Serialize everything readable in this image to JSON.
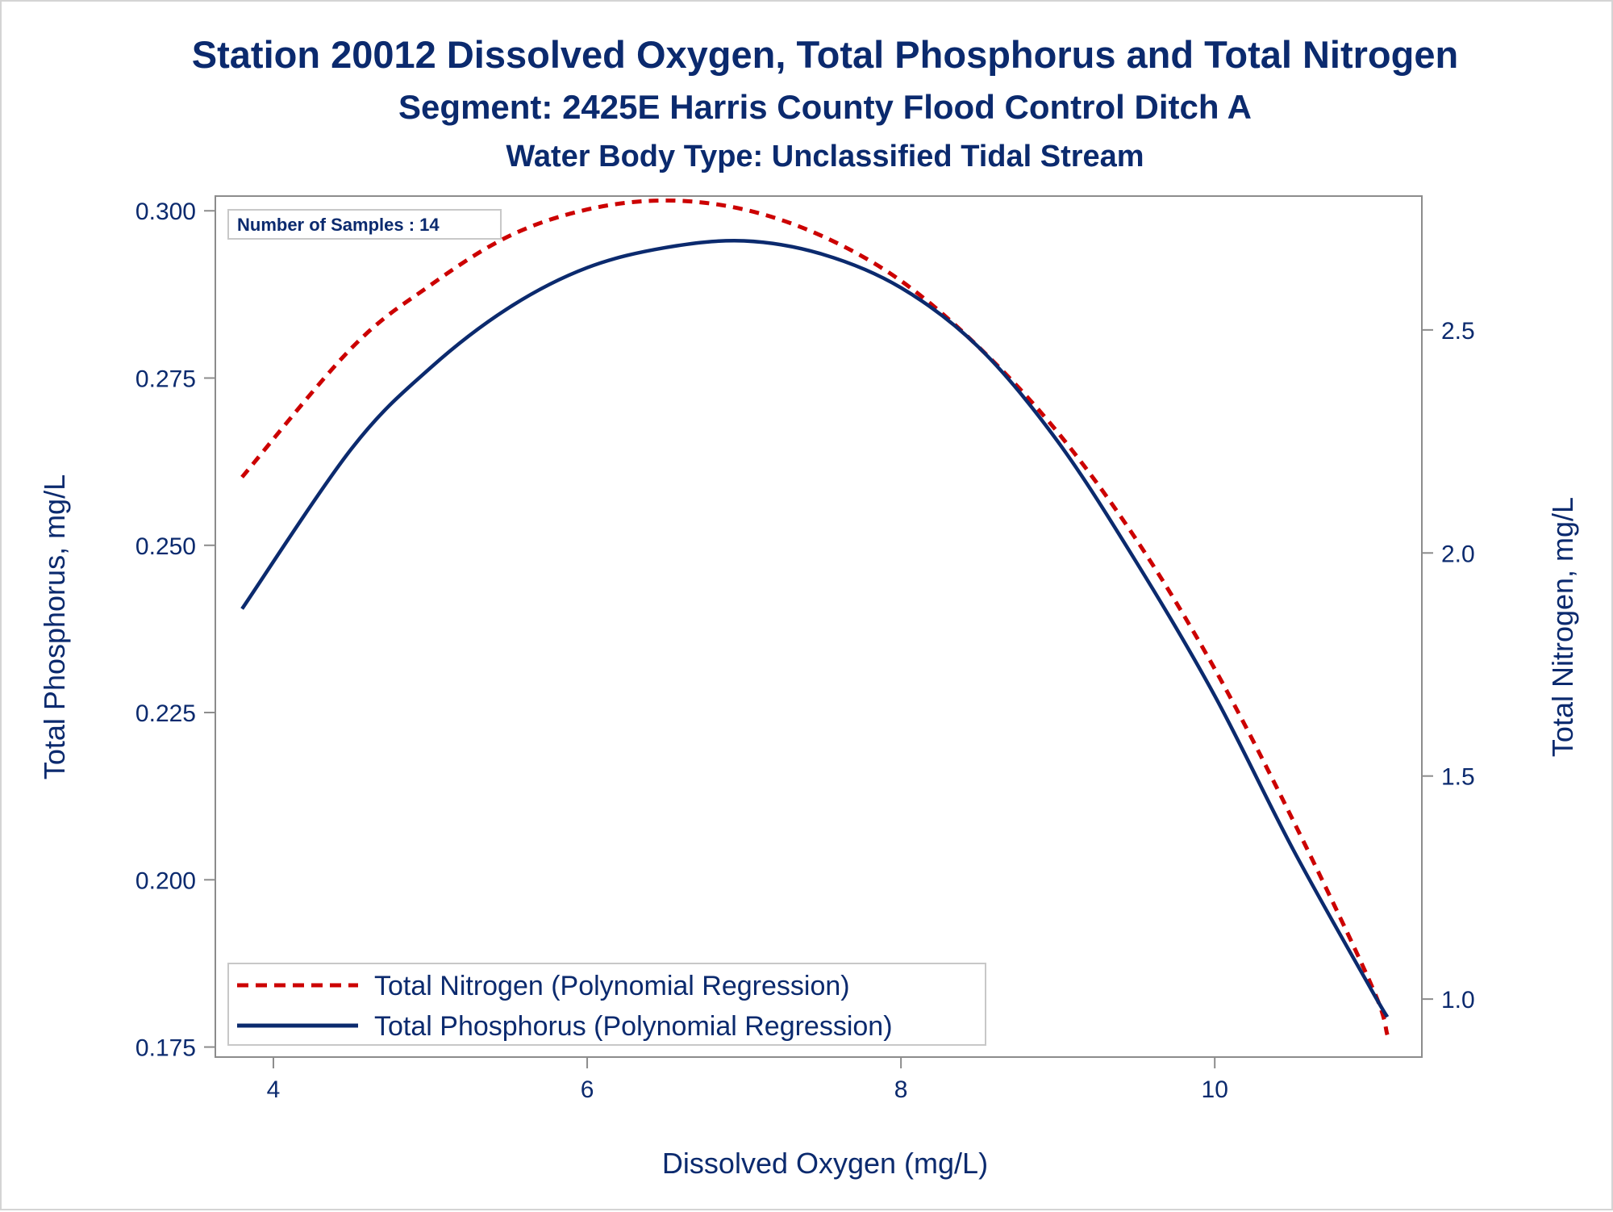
{
  "chart_data": {
    "type": "line",
    "title": "Station 20012  Dissolved Oxygen, Total Phosphorus and Total Nitrogen",
    "subtitle": "Segment: 2425E  Harris County Flood Control Ditch A",
    "subtitle2": "Water Body Type: Unclassified Tidal Stream",
    "xlabel": "Dissolved Oxygen (mg/L)",
    "ylabel": "Total Phosphorus, mg/L",
    "y2label": "Total Nitrogen, mg/L",
    "annotation": "Number of Samples : 14",
    "xlim": [
      3.63,
      11.32
    ],
    "ylim": [
      0.1735,
      0.3022
    ],
    "y2lim": [
      0.87,
      2.8
    ],
    "x_ticks": [
      4,
      6,
      8,
      10
    ],
    "y_ticks": [
      0.175,
      0.2,
      0.225,
      0.25,
      0.275,
      0.3
    ],
    "y2_ticks": [
      1.0,
      1.5,
      2.0,
      2.5
    ],
    "x_tick_labels": [
      "4",
      "6",
      "8",
      "10"
    ],
    "y_tick_labels": [
      "0.175",
      "0.200",
      "0.225",
      "0.250",
      "0.275",
      "0.300"
    ],
    "y2_tick_labels": [
      "1.0",
      "1.5",
      "2.0",
      "2.5"
    ],
    "legend_position": "bottom-left",
    "grid": false,
    "series": [
      {
        "name": "Total Nitrogen (Polynomial Regression)",
        "axis": "right",
        "style": "dashed",
        "color": "#cc0000",
        "x": [
          3.8,
          4.5,
          5.0,
          5.5,
          6.0,
          6.5,
          7.0,
          7.5,
          8.0,
          8.5,
          9.0,
          9.5,
          10.0,
          10.5,
          11.0,
          11.1
        ],
        "y": [
          2.17,
          2.46,
          2.6,
          2.71,
          2.77,
          2.79,
          2.77,
          2.71,
          2.61,
          2.46,
          2.27,
          2.03,
          1.74,
          1.4,
          1.03,
          0.92
        ]
      },
      {
        "name": "Total Phosphorus (Polynomial Regression)",
        "axis": "left",
        "style": "solid",
        "color": "#0b2a6e",
        "x": [
          3.8,
          4.5,
          5.0,
          5.5,
          6.0,
          6.5,
          7.0,
          7.5,
          8.0,
          8.5,
          9.0,
          9.5,
          10.0,
          10.5,
          11.0,
          11.1
        ],
        "y": [
          0.2405,
          0.2645,
          0.2765,
          0.2855,
          0.2915,
          0.2945,
          0.2955,
          0.2935,
          0.2885,
          0.2795,
          0.2655,
          0.2475,
          0.2275,
          0.2045,
          0.1835,
          0.1795
        ]
      }
    ]
  },
  "colors": {
    "text": "#0b2a6e",
    "axis": "#8c8c8c"
  }
}
